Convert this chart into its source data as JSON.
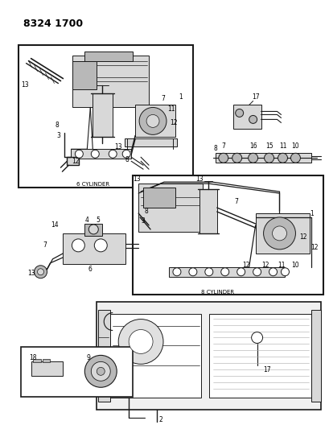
{
  "title": "8324 1700",
  "background_color": "#ffffff",
  "figure_width": 4.1,
  "figure_height": 5.33,
  "dpi": 100,
  "box1_caption": "6 CYLINDER",
  "box2_caption": "8 CYLINDER",
  "line_color": "#1a1a1a",
  "gray_light": "#d8d8d8",
  "gray_mid": "#b8b8b8",
  "gray_dark": "#888888"
}
